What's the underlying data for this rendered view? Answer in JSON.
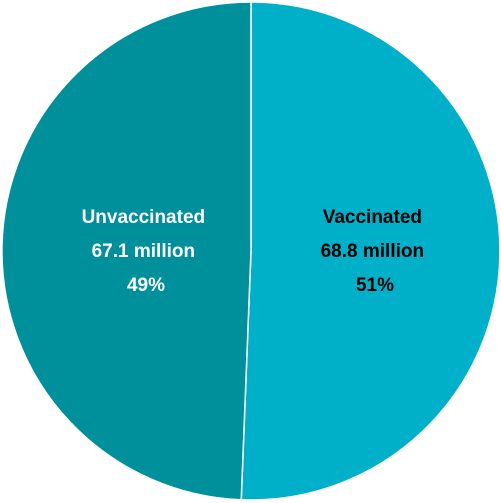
{
  "chart_data": {
    "type": "pie",
    "slices": [
      {
        "name": "Vaccinated",
        "amount": "68.8 million",
        "percent": "51%",
        "value": 68.8,
        "color": "#00b0c8",
        "label_color": "#000000"
      },
      {
        "name": "Unvaccinated",
        "amount": "67.1 million",
        "percent": "49%",
        "value": 67.1,
        "color": "#00909c",
        "label_color": "#ffffff"
      }
    ],
    "start_angle_deg": 0,
    "direction": "clockwise",
    "title": ""
  }
}
